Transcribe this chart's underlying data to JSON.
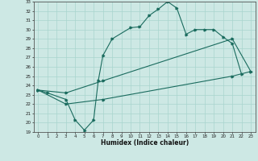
{
  "xlabel": "Humidex (Indice chaleur)",
  "xlim": [
    -0.5,
    23.5
  ],
  "ylim": [
    19,
    33
  ],
  "yticks": [
    19,
    20,
    21,
    22,
    23,
    24,
    25,
    26,
    27,
    28,
    29,
    30,
    31,
    32,
    33
  ],
  "xticks": [
    0,
    1,
    2,
    3,
    4,
    5,
    6,
    7,
    8,
    9,
    10,
    11,
    12,
    13,
    14,
    15,
    16,
    17,
    18,
    19,
    20,
    21,
    22,
    23
  ],
  "bg_color": "#cde8e4",
  "line_color": "#1a6b5e",
  "grid_color": "#a8d5ce",
  "line1": [
    [
      0,
      23.5
    ],
    [
      1,
      23.2
    ],
    [
      3,
      22.5
    ],
    [
      4,
      20.3
    ],
    [
      5,
      19.2
    ],
    [
      6,
      20.3
    ],
    [
      6.5,
      24.5
    ],
    [
      7,
      27.2
    ],
    [
      8,
      29.0
    ],
    [
      10,
      30.2
    ],
    [
      11,
      30.3
    ],
    [
      12,
      31.5
    ],
    [
      13,
      32.2
    ],
    [
      14,
      33.0
    ],
    [
      15,
      32.3
    ],
    [
      16,
      29.5
    ],
    [
      17,
      30.0
    ],
    [
      18,
      30.0
    ],
    [
      19,
      30.0
    ],
    [
      20,
      29.2
    ],
    [
      21,
      28.5
    ],
    [
      22,
      25.2
    ]
  ],
  "line2": [
    [
      0,
      23.5
    ],
    [
      3,
      23.2
    ],
    [
      7,
      24.5
    ],
    [
      21,
      29.0
    ],
    [
      23,
      25.5
    ]
  ],
  "line3": [
    [
      0,
      23.5
    ],
    [
      3,
      22.0
    ],
    [
      7,
      22.5
    ],
    [
      21,
      25.0
    ],
    [
      23,
      25.5
    ]
  ]
}
